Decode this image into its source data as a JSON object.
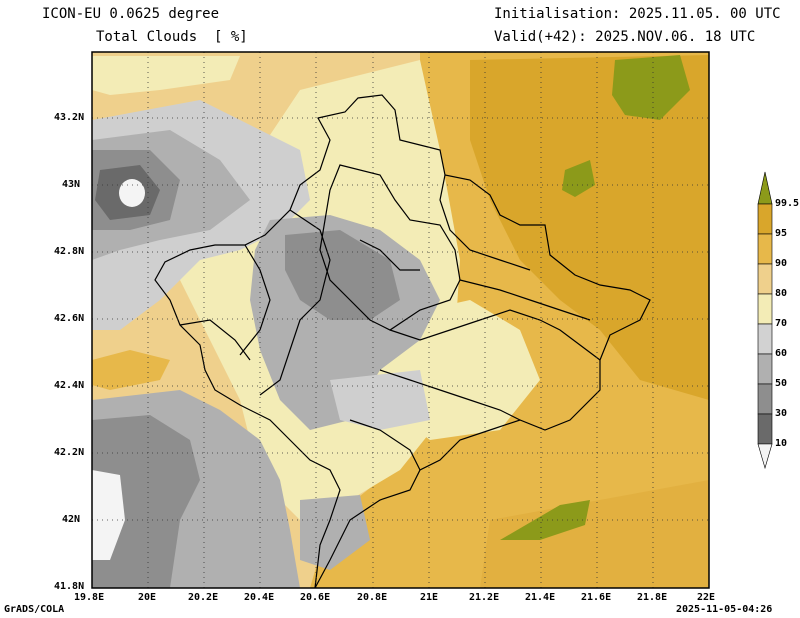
{
  "header": {
    "model": "ICON-EU 0.0625 degree",
    "variable": "Total Clouds  [ %]",
    "init": "Initialisation: 2025.11.05. 00 UTC",
    "valid": "Valid(+42): 2025.NOV.06. 18 UTC"
  },
  "footer": {
    "credit": "GrADS/COLA",
    "timestamp": "2025-11-05-04:26"
  },
  "x_ticks": [
    "19.8E",
    "20E",
    "20.2E",
    "20.4E",
    "20.6E",
    "20.8E",
    "21E",
    "21.2E",
    "21.4E",
    "21.6E",
    "21.8E",
    "22E"
  ],
  "y_ticks": [
    "43.2N",
    "43N",
    "42.8N",
    "42.6N",
    "42.4N",
    "42.2N",
    "42N",
    "41.8N"
  ],
  "colorbar": {
    "labels": [
      "99.5",
      "95",
      "90",
      "80",
      "70",
      "60",
      "50",
      "30",
      "10"
    ],
    "colors": [
      "#8c9a1a",
      "#d9a62b",
      "#e7b84a",
      "#efd08c",
      "#f3ecb6",
      "#d2d2d2",
      "#b0b0b0",
      "#8e8e8e",
      "#6a6a6a",
      "#f4f4f4"
    ]
  },
  "map": {
    "extent": {
      "lon_min": 19.8,
      "lon_max": 22.0,
      "lat_min": 41.8,
      "lat_max": 43.4
    },
    "colors": {
      "cloud_99": "#8c9a1a",
      "cloud_95": "#d9a62b",
      "cloud_90": "#e7b84a",
      "cloud_80": "#efd08c",
      "cloud_70": "#f3ecb6",
      "cloud_60": "#cfcfcf",
      "cloud_50": "#b0b0b0",
      "cloud_30": "#8e8e8e",
      "cloud_10": "#6a6a6a",
      "cloud_0": "#f4f4f4",
      "border": "#000000",
      "grid": "#333333"
    }
  }
}
